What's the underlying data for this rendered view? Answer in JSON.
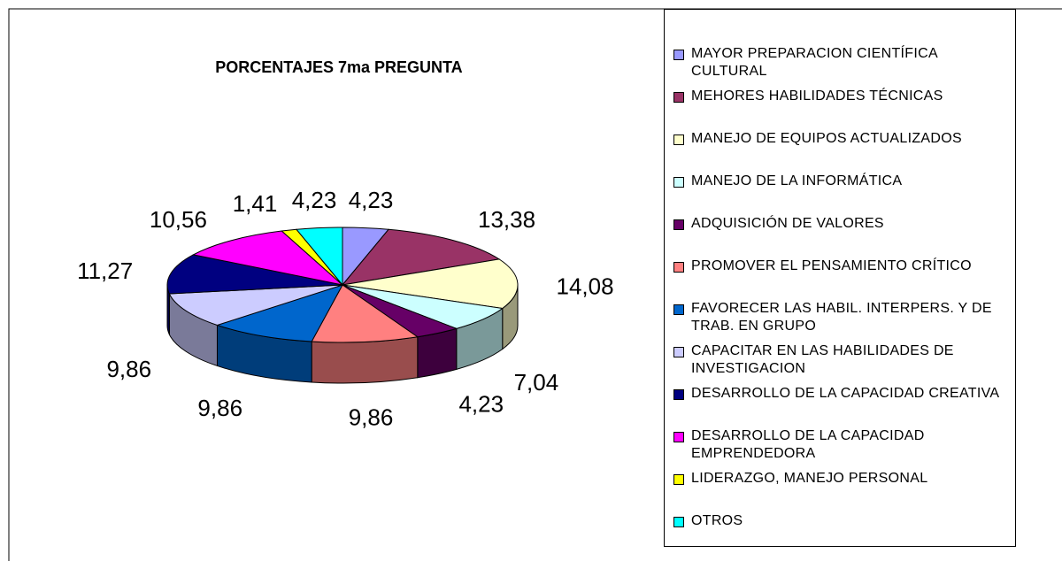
{
  "chart_data": {
    "type": "pie3d",
    "title": "PORCENTAJES 7ma PREGUNTA",
    "categories": [
      "MAYOR PREPARACION CIENTÍFICA CULTURAL",
      "MEHORES HABILIDADES TÉCNICAS",
      "MANEJO DE EQUIPOS ACTUALIZADOS",
      "MANEJO DE LA INFORMÁTICA",
      "ADQUISICIÓN DE VALORES",
      "PROMOVER EL PENSAMIENTO CRÍTICO",
      "FAVORECER LAS HABIL. INTERPERS. Y DE TRAB. EN GRUPO",
      "CAPACITAR EN LAS HABILIDADES DE INVESTIGACION",
      "DESARROLLO DE LA CAPACIDAD CREATIVA",
      "DESARROLLO DE LA CAPACIDAD EMPRENDEDORA",
      "LIDERAZGO, MANEJO PERSONAL",
      "OTROS"
    ],
    "values": [
      4.23,
      13.38,
      14.08,
      7.04,
      4.23,
      9.86,
      9.86,
      9.86,
      11.27,
      10.56,
      1.41,
      4.23
    ],
    "value_labels": [
      "4,23",
      "13,38",
      "14,08",
      "7,04",
      "4,23",
      "9,86",
      "9,86",
      "9,86",
      "11,27",
      "10,56",
      "1,41",
      "4,23"
    ],
    "colors": [
      "#9999ff",
      "#993366",
      "#ffffcc",
      "#ccffff",
      "#660066",
      "#ff8080",
      "#0066cc",
      "#ccccff",
      "#000080",
      "#ff00ff",
      "#ffff00",
      "#00ffff"
    ],
    "legend": "right"
  }
}
